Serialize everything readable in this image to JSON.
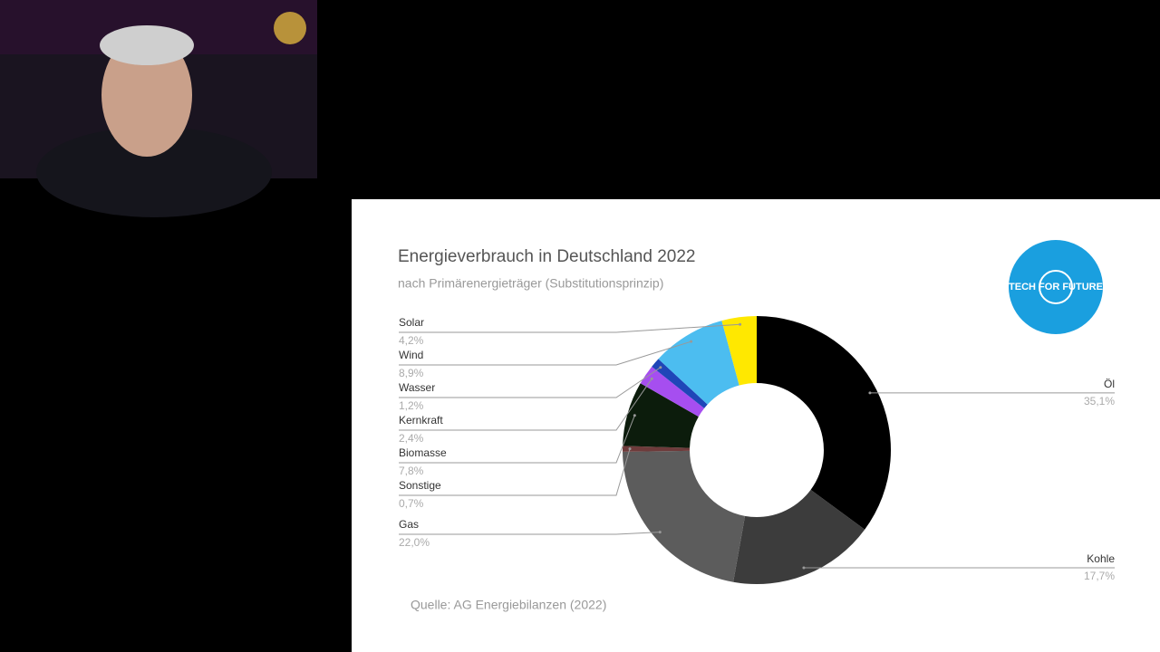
{
  "chart_data": {
    "type": "pie",
    "title": "Energieverbrauch in Deutschland 2022",
    "subtitle": "nach Primärenergieträger (Substitutionsprinzip)",
    "source": "Quelle: AG Energiebilanzen (2022)",
    "logo": "TECH FOR FUTURE",
    "donut": true,
    "categories": [
      "Öl",
      "Kohle",
      "Gas",
      "Sonstige",
      "Biomasse",
      "Kernkraft",
      "Wasser",
      "Wind",
      "Solar"
    ],
    "values": [
      35.1,
      17.7,
      22.0,
      0.7,
      7.8,
      2.4,
      1.2,
      8.9,
      4.2
    ],
    "value_labels": [
      "35,1%",
      "17,7%",
      "22,0%",
      "0,7%",
      "7,8%",
      "2,4%",
      "1,2%",
      "8,9%",
      "4,2%"
    ],
    "colors": [
      "#000000",
      "#3c3c3c",
      "#5c5c5c",
      "#6e3b3b",
      "#0c1c0c",
      "#a64ef0",
      "#1f46b8",
      "#4cbdf0",
      "#ffe800"
    ]
  }
}
